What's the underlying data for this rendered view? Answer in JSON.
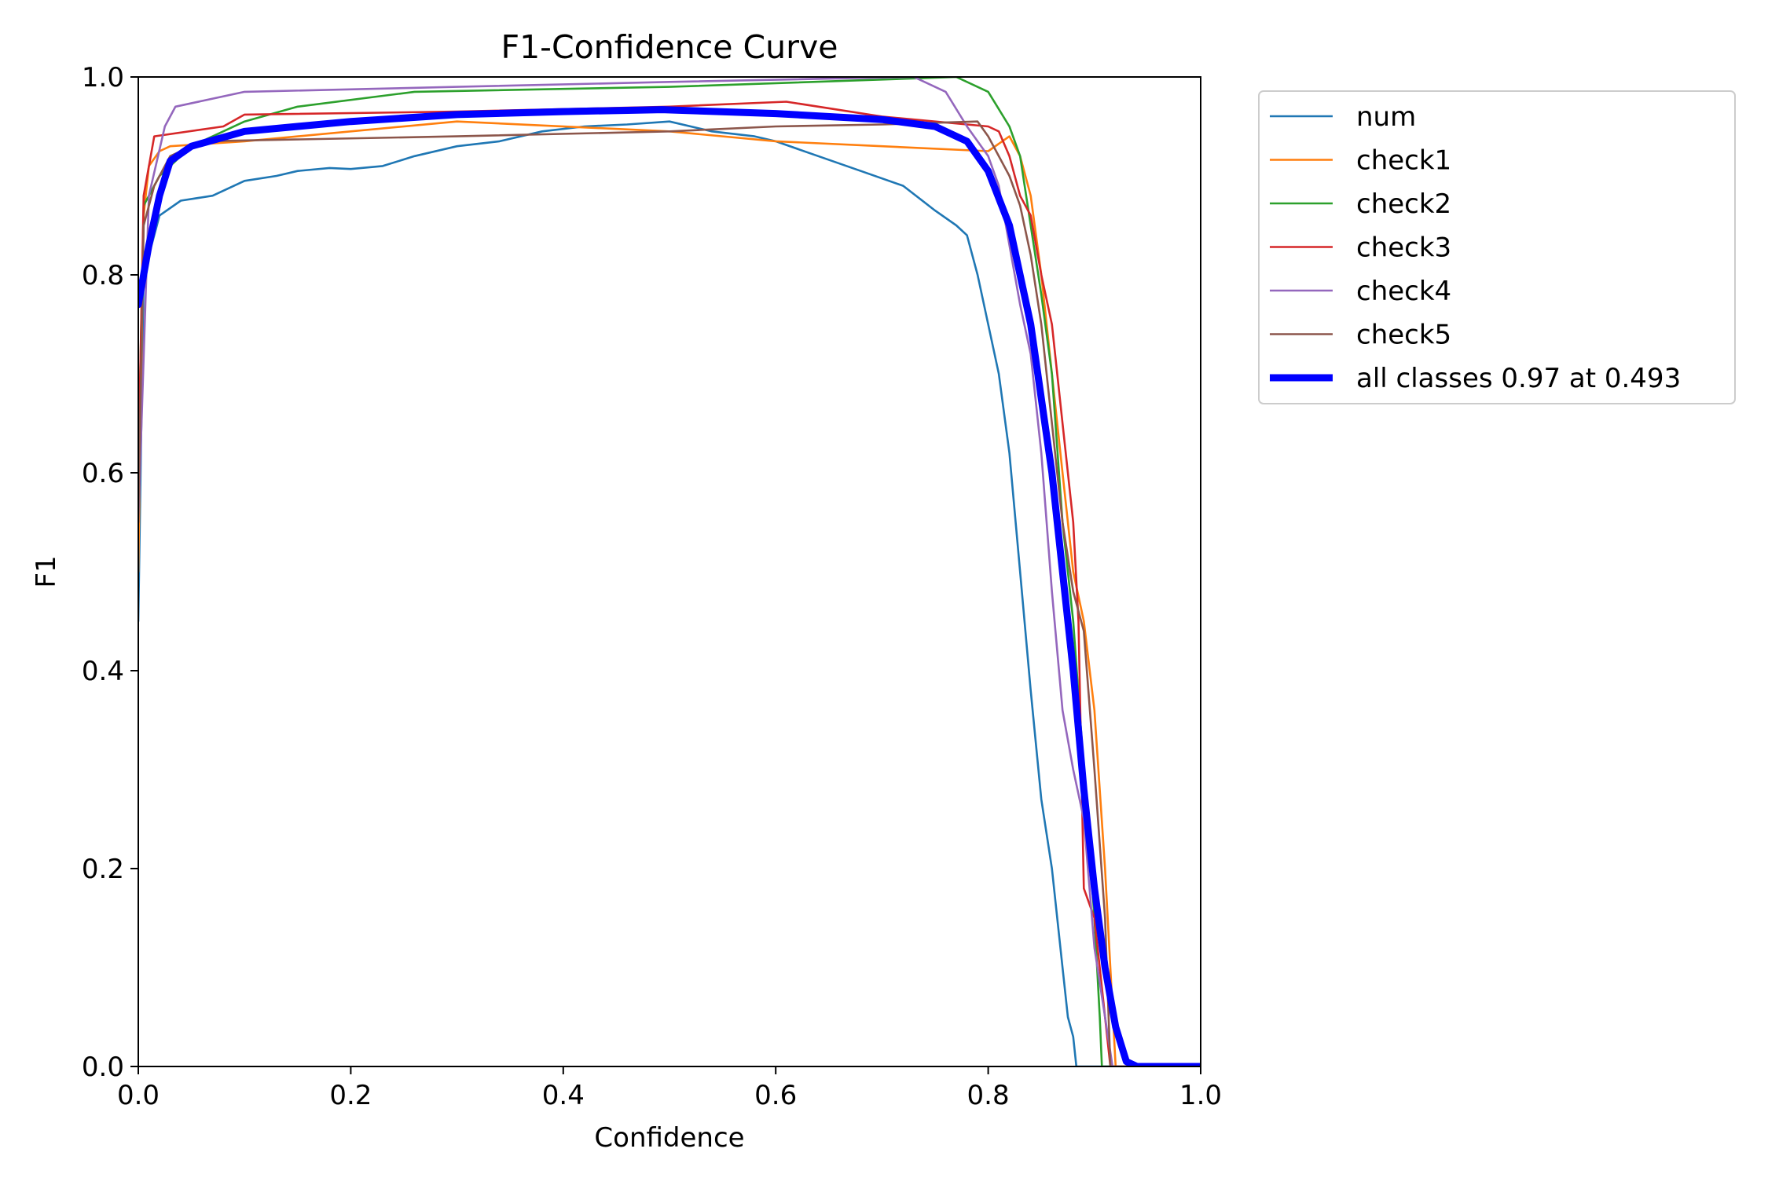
{
  "chart_data": {
    "type": "line",
    "title": "F1-Confidence Curve",
    "xlabel": "Confidence",
    "ylabel": "F1",
    "xlim": [
      0,
      1
    ],
    "ylim": [
      0,
      1
    ],
    "grid": false,
    "legend_position": "outside-top-right",
    "x_ticks": [
      0.0,
      0.2,
      0.4,
      0.6,
      0.8,
      1.0
    ],
    "y_ticks": [
      0.0,
      0.2,
      0.4,
      0.6,
      0.8,
      1.0
    ],
    "x_tick_labels": [
      "0.0",
      "0.2",
      "0.4",
      "0.6",
      "0.8",
      "1.0"
    ],
    "y_tick_labels": [
      "0.0",
      "0.2",
      "0.4",
      "0.6",
      "0.8",
      "1.0"
    ],
    "series": [
      {
        "name": "num",
        "color": "#1f77b4",
        "points": [
          [
            0.0,
            0.45
          ],
          [
            0.005,
            0.8
          ],
          [
            0.02,
            0.86
          ],
          [
            0.04,
            0.875
          ],
          [
            0.07,
            0.88
          ],
          [
            0.1,
            0.895
          ],
          [
            0.13,
            0.9
          ],
          [
            0.15,
            0.905
          ],
          [
            0.18,
            0.908
          ],
          [
            0.2,
            0.907
          ],
          [
            0.23,
            0.91
          ],
          [
            0.26,
            0.92
          ],
          [
            0.3,
            0.93
          ],
          [
            0.34,
            0.935
          ],
          [
            0.38,
            0.945
          ],
          [
            0.42,
            0.95
          ],
          [
            0.46,
            0.952
          ],
          [
            0.5,
            0.955
          ],
          [
            0.54,
            0.945
          ],
          [
            0.58,
            0.94
          ],
          [
            0.6,
            0.935
          ],
          [
            0.64,
            0.92
          ],
          [
            0.68,
            0.905
          ],
          [
            0.72,
            0.89
          ],
          [
            0.75,
            0.865
          ],
          [
            0.77,
            0.85
          ],
          [
            0.78,
            0.84
          ],
          [
            0.79,
            0.8
          ],
          [
            0.8,
            0.75
          ],
          [
            0.81,
            0.7
          ],
          [
            0.82,
            0.62
          ],
          [
            0.83,
            0.5
          ],
          [
            0.84,
            0.38
          ],
          [
            0.85,
            0.27
          ],
          [
            0.86,
            0.2
          ],
          [
            0.87,
            0.1
          ],
          [
            0.875,
            0.05
          ],
          [
            0.88,
            0.03
          ],
          [
            0.883,
            0.0
          ],
          [
            1.0,
            0.0
          ]
        ]
      },
      {
        "name": "check1",
        "color": "#ff7f0e",
        "points": [
          [
            0.0,
            0.5
          ],
          [
            0.005,
            0.86
          ],
          [
            0.01,
            0.91
          ],
          [
            0.02,
            0.925
          ],
          [
            0.03,
            0.93
          ],
          [
            0.1,
            0.935
          ],
          [
            0.3,
            0.955
          ],
          [
            0.5,
            0.945
          ],
          [
            0.6,
            0.935
          ],
          [
            0.7,
            0.93
          ],
          [
            0.8,
            0.925
          ],
          [
            0.82,
            0.94
          ],
          [
            0.83,
            0.92
          ],
          [
            0.84,
            0.88
          ],
          [
            0.85,
            0.8
          ],
          [
            0.86,
            0.7
          ],
          [
            0.87,
            0.6
          ],
          [
            0.88,
            0.5
          ],
          [
            0.89,
            0.45
          ],
          [
            0.9,
            0.36
          ],
          [
            0.91,
            0.2
          ],
          [
            0.92,
            0.0
          ],
          [
            1.0,
            0.0
          ]
        ]
      },
      {
        "name": "check2",
        "color": "#2ca02c",
        "points": [
          [
            0.0,
            0.6
          ],
          [
            0.005,
            0.87
          ],
          [
            0.02,
            0.9
          ],
          [
            0.05,
            0.93
          ],
          [
            0.1,
            0.955
          ],
          [
            0.15,
            0.97
          ],
          [
            0.26,
            0.985
          ],
          [
            0.5,
            0.99
          ],
          [
            0.77,
            1.0
          ],
          [
            0.8,
            0.985
          ],
          [
            0.82,
            0.95
          ],
          [
            0.83,
            0.92
          ],
          [
            0.84,
            0.85
          ],
          [
            0.85,
            0.78
          ],
          [
            0.86,
            0.7
          ],
          [
            0.87,
            0.55
          ],
          [
            0.88,
            0.45
          ],
          [
            0.89,
            0.3
          ],
          [
            0.9,
            0.15
          ],
          [
            0.905,
            0.05
          ],
          [
            0.907,
            0.0
          ],
          [
            1.0,
            0.0
          ]
        ]
      },
      {
        "name": "check3",
        "color": "#d62728",
        "points": [
          [
            0.0,
            0.6
          ],
          [
            0.005,
            0.88
          ],
          [
            0.015,
            0.94
          ],
          [
            0.08,
            0.95
          ],
          [
            0.1,
            0.962
          ],
          [
            0.3,
            0.965
          ],
          [
            0.5,
            0.97
          ],
          [
            0.61,
            0.975
          ],
          [
            0.7,
            0.96
          ],
          [
            0.8,
            0.95
          ],
          [
            0.81,
            0.945
          ],
          [
            0.82,
            0.92
          ],
          [
            0.83,
            0.88
          ],
          [
            0.84,
            0.86
          ],
          [
            0.85,
            0.8
          ],
          [
            0.86,
            0.75
          ],
          [
            0.87,
            0.65
          ],
          [
            0.875,
            0.6
          ],
          [
            0.88,
            0.55
          ],
          [
            0.885,
            0.45
          ],
          [
            0.89,
            0.18
          ],
          [
            0.9,
            0.15
          ],
          [
            0.91,
            0.05
          ],
          [
            0.915,
            0.0
          ],
          [
            1.0,
            0.0
          ]
        ]
      },
      {
        "name": "check4",
        "color": "#9467bd",
        "points": [
          [
            0.0,
            0.55
          ],
          [
            0.01,
            0.88
          ],
          [
            0.025,
            0.95
          ],
          [
            0.035,
            0.97
          ],
          [
            0.1,
            0.985
          ],
          [
            0.3,
            0.99
          ],
          [
            0.5,
            0.995
          ],
          [
            0.73,
            1.0
          ],
          [
            0.76,
            0.985
          ],
          [
            0.78,
            0.95
          ],
          [
            0.8,
            0.92
          ],
          [
            0.81,
            0.89
          ],
          [
            0.82,
            0.83
          ],
          [
            0.83,
            0.77
          ],
          [
            0.84,
            0.72
          ],
          [
            0.85,
            0.62
          ],
          [
            0.86,
            0.48
          ],
          [
            0.87,
            0.36
          ],
          [
            0.88,
            0.3
          ],
          [
            0.89,
            0.25
          ],
          [
            0.9,
            0.12
          ],
          [
            0.91,
            0.05
          ],
          [
            0.917,
            0.0
          ],
          [
            1.0,
            0.0
          ]
        ]
      },
      {
        "name": "check5",
        "color": "#8c564b",
        "points": [
          [
            0.0,
            0.55
          ],
          [
            0.005,
            0.85
          ],
          [
            0.015,
            0.89
          ],
          [
            0.03,
            0.92
          ],
          [
            0.06,
            0.935
          ],
          [
            0.3,
            0.94
          ],
          [
            0.5,
            0.945
          ],
          [
            0.6,
            0.95
          ],
          [
            0.7,
            0.952
          ],
          [
            0.79,
            0.955
          ],
          [
            0.8,
            0.94
          ],
          [
            0.82,
            0.9
          ],
          [
            0.83,
            0.87
          ],
          [
            0.84,
            0.82
          ],
          [
            0.85,
            0.75
          ],
          [
            0.86,
            0.65
          ],
          [
            0.87,
            0.55
          ],
          [
            0.88,
            0.48
          ],
          [
            0.89,
            0.44
          ],
          [
            0.9,
            0.3
          ],
          [
            0.91,
            0.15
          ],
          [
            0.915,
            0.0
          ],
          [
            1.0,
            0.0
          ]
        ]
      },
      {
        "name": "all classes 0.97 at 0.493",
        "color": "#0000ff",
        "bold": true,
        "points": [
          [
            0.0,
            0.77
          ],
          [
            0.01,
            0.83
          ],
          [
            0.02,
            0.88
          ],
          [
            0.03,
            0.915
          ],
          [
            0.05,
            0.93
          ],
          [
            0.1,
            0.945
          ],
          [
            0.2,
            0.955
          ],
          [
            0.3,
            0.962
          ],
          [
            0.4,
            0.965
          ],
          [
            0.493,
            0.967
          ],
          [
            0.6,
            0.963
          ],
          [
            0.7,
            0.957
          ],
          [
            0.75,
            0.95
          ],
          [
            0.78,
            0.935
          ],
          [
            0.8,
            0.905
          ],
          [
            0.82,
            0.85
          ],
          [
            0.84,
            0.75
          ],
          [
            0.86,
            0.6
          ],
          [
            0.87,
            0.5
          ],
          [
            0.88,
            0.4
          ],
          [
            0.89,
            0.28
          ],
          [
            0.9,
            0.18
          ],
          [
            0.91,
            0.1
          ],
          [
            0.92,
            0.04
          ],
          [
            0.93,
            0.005
          ],
          [
            0.94,
            0.0
          ],
          [
            1.0,
            0.0
          ]
        ]
      }
    ]
  }
}
